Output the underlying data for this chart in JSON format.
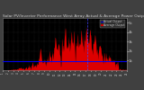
{
  "title": "Solar PV/Inverter Performance West Array Actual & Average Power Output",
  "title_fontsize": 3.2,
  "bg_color": "#404040",
  "plot_bg_color": "#000000",
  "grid_color": "#555555",
  "area_color": "#dd0000",
  "avg_line_color": "#0000ff",
  "vline_color": "#4444ff",
  "ylim": [
    0,
    5.5
  ],
  "yticks": [
    1,
    2,
    3,
    4,
    5
  ],
  "ytick_labels": [
    "1k",
    "2k",
    "3k",
    "4k",
    "5k"
  ],
  "legend_labels": [
    "Actual Output",
    "Average Output"
  ],
  "legend_colors": [
    "#0000cc",
    "#cc0000"
  ],
  "num_points": 400,
  "avg_value": 0.95,
  "vline_pos": 0.68,
  "seed": 17
}
